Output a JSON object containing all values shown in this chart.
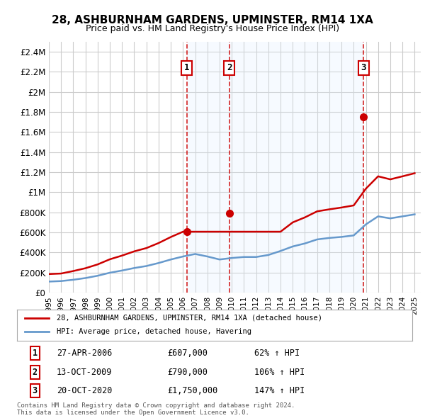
{
  "title": "28, ASHBURNHAM GARDENS, UPMINSTER, RM14 1XA",
  "subtitle": "Price paid vs. HM Land Registry's House Price Index (HPI)",
  "ylabel_ticks": [
    "£0",
    "£200K",
    "£400K",
    "£600K",
    "£800K",
    "£1M",
    "£1.2M",
    "£1.4M",
    "£1.6M",
    "£1.8M",
    "£2M",
    "£2.2M",
    "£2.4M"
  ],
  "ylim": [
    0,
    2500000
  ],
  "xlim_start": 1995.0,
  "xlim_end": 2025.5,
  "grid_color": "#cccccc",
  "background_color": "#ffffff",
  "plot_bg_color": "#ffffff",
  "hpi_line_color": "#6699cc",
  "sale_line_color": "#cc0000",
  "sale_marker_color": "#cc0000",
  "shade_color": "#ddeeff",
  "purchase_dates": [
    2006.32,
    2009.79,
    2020.8
  ],
  "purchase_prices": [
    607000,
    790000,
    1750000
  ],
  "purchase_labels": [
    "1",
    "2",
    "3"
  ],
  "legend_sale_label": "28, ASHBURNHAM GARDENS, UPMINSTER, RM14 1XA (detached house)",
  "legend_hpi_label": "HPI: Average price, detached house, Havering",
  "table_rows": [
    [
      "1",
      "27-APR-2006",
      "£607,000",
      "62% ↑ HPI"
    ],
    [
      "2",
      "13-OCT-2009",
      "£790,000",
      "106% ↑ HPI"
    ],
    [
      "3",
      "20-OCT-2020",
      "£1,750,000",
      "147% ↑ HPI"
    ]
  ],
  "footer_text": "Contains HM Land Registry data © Crown copyright and database right 2024.\nThis data is licensed under the Open Government Licence v3.0.",
  "hpi_years": [
    1995,
    1996,
    1997,
    1998,
    1999,
    2000,
    2001,
    2002,
    2003,
    2004,
    2005,
    2006,
    2007,
    2008,
    2009,
    2010,
    2011,
    2012,
    2013,
    2014,
    2015,
    2016,
    2017,
    2018,
    2019,
    2020,
    2021,
    2022,
    2023,
    2024,
    2025
  ],
  "hpi_values": [
    110000,
    115000,
    128000,
    145000,
    168000,
    198000,
    220000,
    245000,
    265000,
    295000,
    330000,
    360000,
    385000,
    360000,
    330000,
    345000,
    355000,
    355000,
    375000,
    415000,
    460000,
    490000,
    530000,
    545000,
    555000,
    570000,
    680000,
    760000,
    740000,
    760000,
    780000
  ],
  "sale_indexed_years": [
    1995,
    1996,
    1997,
    1998,
    1999,
    2000,
    2001,
    2002,
    2003,
    2004,
    2005,
    2006,
    2007,
    2008,
    2009,
    2010,
    2011,
    2012,
    2013,
    2014,
    2015,
    2016,
    2017,
    2018,
    2019,
    2020,
    2021,
    2022,
    2023,
    2024,
    2025
  ],
  "sale_indexed_values": [
    185000,
    190000,
    215000,
    243000,
    281000,
    332000,
    369000,
    411000,
    444000,
    494000,
    554000,
    607000,
    607000,
    607000,
    607000,
    607000,
    607000,
    607000,
    607000,
    607000,
    700000,
    750000,
    810000,
    830000,
    848000,
    869000,
    1036000,
    1159000,
    1129000,
    1159000,
    1190000
  ],
  "x_tick_years": [
    1995,
    1996,
    1997,
    1998,
    1999,
    2000,
    2001,
    2002,
    2003,
    2004,
    2005,
    2006,
    2007,
    2008,
    2009,
    2010,
    2011,
    2012,
    2013,
    2014,
    2015,
    2016,
    2017,
    2018,
    2019,
    2020,
    2021,
    2022,
    2023,
    2024,
    2025
  ]
}
